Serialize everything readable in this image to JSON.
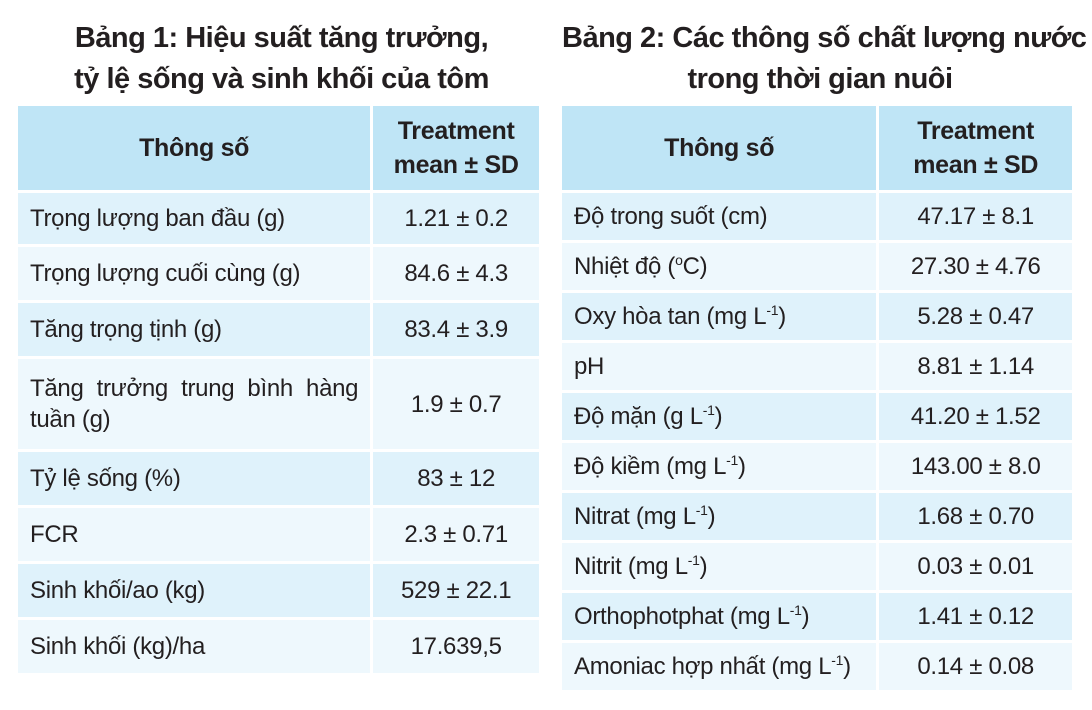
{
  "table1": {
    "title_line1": "Bảng 1: Hiệu suất tăng trưởng,",
    "title_line2": "tỷ lệ sống và sinh khối của tôm",
    "header_param": "Thông số",
    "header_value_line1": "Treatment",
    "header_value_line2": "mean ± SD",
    "rows": [
      {
        "label": "Trọng lượng ban đầu (g)",
        "value": "1.21 ± 0.2"
      },
      {
        "label": "Trọng lượng cuối cùng (g)",
        "value": "84.6 ± 4.3"
      },
      {
        "label": "Tăng trọng tịnh (g)",
        "value": "83.4 ± 3.9"
      },
      {
        "label": "Tăng trưởng trung bình hàng tuần (g)",
        "value": "1.9 ± 0.7"
      },
      {
        "label": "Tỷ lệ sống (%)",
        "value": "83 ± 12"
      },
      {
        "label": "FCR",
        "value": "2.3 ± 0.71"
      },
      {
        "label": "Sinh khối/ao (kg)",
        "value": "529 ± 22.1"
      },
      {
        "label": "Sinh khối (kg)/ha",
        "value": "17.639,5"
      }
    ]
  },
  "table2": {
    "title_line1": "Bảng 2: Các thông số chất lượng nước",
    "title_line2": "trong thời gian nuôi",
    "header_param": "Thông số",
    "header_value_line1": "Treatment",
    "header_value_line2": "mean ± SD",
    "rows": [
      {
        "label": "Độ trong suốt (cm)",
        "sup": "",
        "suffix": "",
        "value": "47.17 ± 8.1"
      },
      {
        "label": "Nhiệt độ (",
        "sup": "o",
        "suffix": "C)",
        "value": "27.30 ± 4.76"
      },
      {
        "label": "Oxy hòa tan (mg L",
        "sup": "-1",
        "suffix": ")",
        "value": "5.28 ± 0.47"
      },
      {
        "label": "pH",
        "sup": "",
        "suffix": "",
        "value": "8.81 ± 1.14"
      },
      {
        "label": "Độ mặn (g L",
        "sup": "-1",
        "suffix": ")",
        "value": "41.20 ± 1.52"
      },
      {
        "label": "Độ kiềm (mg L",
        "sup": "-1",
        "suffix": ")",
        "value": "143.00 ± 8.0"
      },
      {
        "label": "Nitrat (mg L",
        "sup": "-1",
        "suffix": ")",
        "value": "1.68 ± 0.70"
      },
      {
        "label": "Nitrit (mg L",
        "sup": "-1",
        "suffix": ")",
        "value": "0.03 ± 0.01"
      },
      {
        "label": "Orthophotphat (mg L",
        "sup": "-1",
        "suffix": ")",
        "value": "1.41 ± 0.12"
      },
      {
        "label": "Amoniac hợp nhất (mg L",
        "sup": "-1",
        "suffix": ")",
        "value": "0.14 ± 0.08"
      }
    ]
  }
}
